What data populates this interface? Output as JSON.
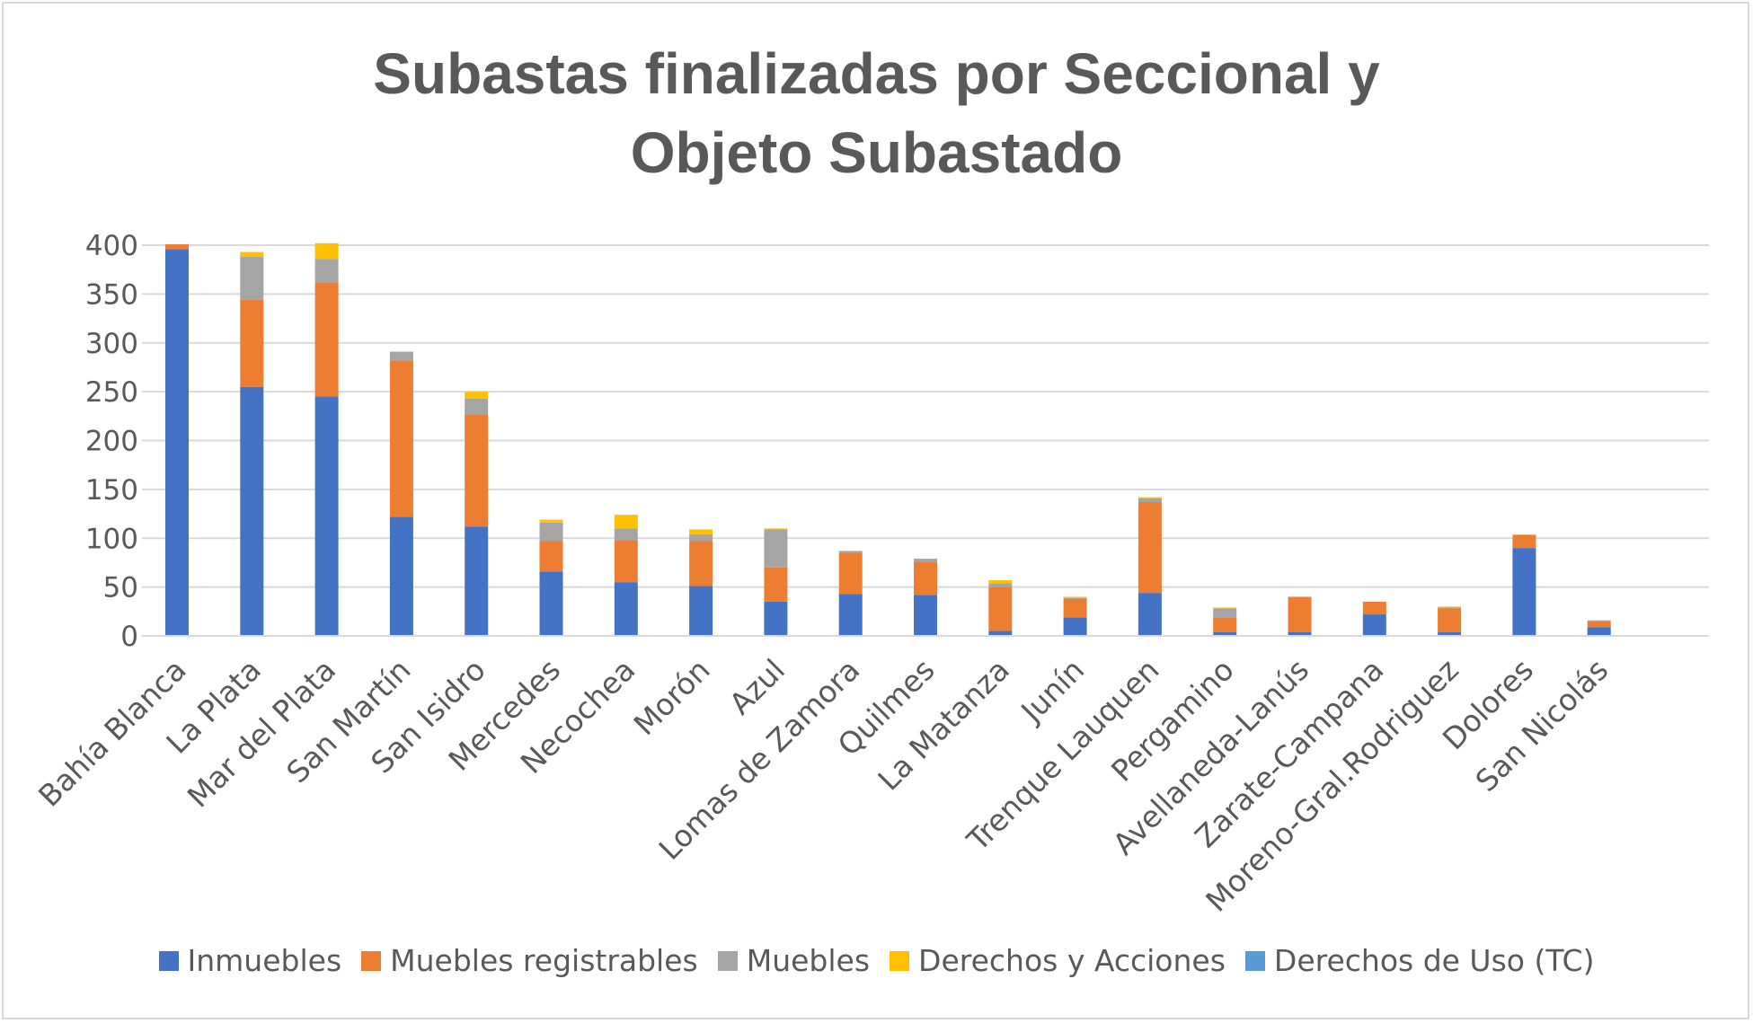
{
  "chart_data": {
    "type": "bar",
    "stacked": true,
    "title_lines": [
      "Subastas finalizadas por Seccional y",
      "Objeto Subastado"
    ],
    "xlabel": "",
    "ylabel": "",
    "ylim": [
      0,
      400
    ],
    "yticks": [
      "0",
      "50",
      "100",
      "150",
      "200",
      "250",
      "300",
      "350",
      "400"
    ],
    "grid": true,
    "legend_position": "bottom",
    "categories": [
      "Bahía Blanca",
      "La Plata",
      "Mar del Plata",
      "San Martín",
      "San Isidro",
      "Mercedes",
      "Necochea",
      "Morón",
      "Azul",
      "Lomas de Zamora",
      "Quilmes",
      "La Matanza",
      "Junín",
      "Trenque Lauquen",
      "Pergamino",
      "Avellaneda-Lanús",
      "Zarate-Campana",
      "Moreno-Gral.Rodriguez",
      "Dolores",
      "San Nicolás"
    ],
    "series": [
      {
        "name": "Inmuebles",
        "color": "#4472c4",
        "values": [
          396,
          255,
          245,
          122,
          112,
          66,
          55,
          51,
          35,
          43,
          42,
          5,
          19,
          44,
          4,
          4,
          22,
          4,
          90,
          9
        ]
      },
      {
        "name": "Muebles registrables",
        "color": "#ed7d31",
        "values": [
          5,
          89,
          117,
          160,
          115,
          31,
          43,
          46,
          35,
          42,
          34,
          45,
          19,
          93,
          15,
          36,
          13,
          24,
          13,
          6
        ]
      },
      {
        "name": "Muebles",
        "color": "#a5a5a5",
        "values": [
          0,
          44,
          24,
          9,
          16,
          19,
          12,
          7,
          39,
          2,
          3,
          4,
          1,
          4,
          9,
          0,
          0,
          1,
          0,
          1
        ]
      },
      {
        "name": "Derechos y Acciones",
        "color": "#ffc000",
        "values": [
          0,
          5,
          16,
          0,
          7,
          3,
          14,
          5,
          1,
          0,
          0,
          3,
          1,
          1,
          1,
          0,
          0,
          1,
          1,
          0
        ]
      },
      {
        "name": "Derechos de Uso (TC)",
        "color": "#5b9bd5",
        "values": [
          0,
          0,
          0,
          0,
          0,
          0,
          0,
          0,
          0,
          0,
          0,
          0,
          0,
          0,
          0,
          0,
          0,
          0,
          0,
          0
        ]
      }
    ]
  }
}
